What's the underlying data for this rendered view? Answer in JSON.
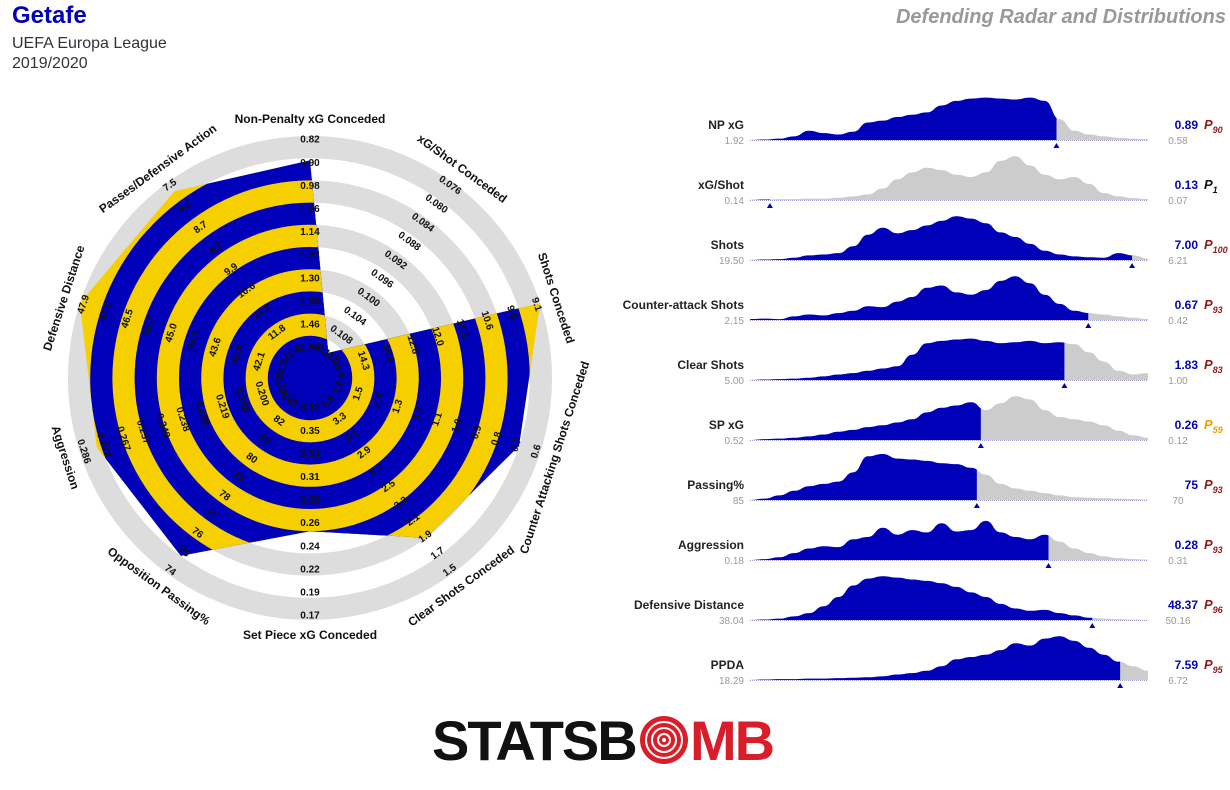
{
  "header": {
    "team": "Getafe",
    "competition": "UEFA Europa League",
    "season": "2019/2020",
    "title": "Defending Radar and Distributions"
  },
  "logo": {
    "text_left": "STATSB",
    "text_right": "MB",
    "left_color": "#111111",
    "right_color": "#d91e2a"
  },
  "colors": {
    "blue": "#0000b8",
    "yellow": "#f5cf00",
    "grey": "#cccccc",
    "ring_grey": "#dddddd",
    "pct_red": "#8b1a1a",
    "pct_orange": "#e8a000"
  },
  "chart_data": [
    {
      "type": "radar",
      "axes": [
        {
          "label": "Non-Penalty xG Conceded",
          "ticks": [
            "1.54",
            "1.46",
            "1.38",
            "1.30",
            "1.22",
            "1.14",
            "1.06",
            "0.98",
            "0.90",
            "0.82"
          ],
          "value_frac": 0.89
        },
        {
          "label": "xG/Shot Conceded",
          "ticks": [
            "0.112",
            "0.108",
            "0.104",
            "0.100",
            "0.096",
            "0.092",
            "0.088",
            "0.084",
            "0.080",
            "0.076"
          ],
          "value_frac": 0.05
        },
        {
          "label": "Shots Conceded",
          "ticks": [
            "15.0",
            "14.3",
            "13.5",
            "12.8",
            "12.0",
            "11.3",
            "10.6",
            "9.8",
            "9.1"
          ],
          "value_frac": 1.0
        },
        {
          "label": "Counter Attacking Shots Conceded",
          "ticks": [
            "1.6",
            "1.5",
            "1.4",
            "1.3",
            "1.2",
            "1.1",
            "1.0",
            "0.9",
            "0.8",
            "0.7",
            "0.6"
          ],
          "value_frac": 0.9
        },
        {
          "label": "Clear Shots Conceded",
          "ticks": [
            "3.5",
            "3.3",
            "3.1",
            "2.9",
            "2.7",
            "2.5",
            "2.3",
            "2.1",
            "1.9",
            "1.7",
            "1.5"
          ],
          "value_frac": 0.8
        },
        {
          "label": "Set Piece xG Conceded",
          "ticks": [
            "0.37",
            "0.35",
            "0.33",
            "0.31",
            "0.28",
            "0.26",
            "0.24",
            "0.22",
            "0.19",
            "0.17"
          ],
          "value_frac": 0.6
        },
        {
          "label": "Opposition Passing%",
          "ticks": [
            "83",
            "82",
            "81",
            "80",
            "79",
            "78",
            "77",
            "76",
            "75",
            "74"
          ],
          "value_frac": 0.9
        },
        {
          "label": "Aggression",
          "ticks": [
            "0.190",
            "0.200",
            "0.209",
            "0.219",
            "0.228",
            "0.238",
            "0.248",
            "0.257",
            "0.267",
            "0.277",
            "0.286"
          ],
          "value_frac": 0.92
        },
        {
          "label": "Defensive Distance",
          "ticks": [
            "41.1",
            "42.1",
            "42.8",
            "43.6",
            "44.3",
            "45.0",
            "45.7",
            "46.5",
            "47.2",
            "47.9"
          ],
          "value_frac": 1.0
        },
        {
          "label": "Passes/Defensive Action",
          "ticks": [
            "12.4",
            "11.8",
            "11.2",
            "10.6",
            "9.9",
            "9.3",
            "8.7",
            "8.1",
            "7.5"
          ],
          "value_frac": 0.95
        }
      ]
    },
    {
      "type": "area",
      "rows": [
        {
          "name": "NP xG",
          "min": "1.92",
          "max": "0.58",
          "value": "0.89",
          "pct": "90",
          "pct_color": "#8b1a1a",
          "marker_frac": 0.77,
          "density": [
            0,
            0.01,
            0.03,
            0.08,
            0.2,
            0.15,
            0.12,
            0.18,
            0.38,
            0.42,
            0.5,
            0.55,
            0.6,
            0.75,
            0.85,
            0.9,
            0.92,
            0.9,
            0.88,
            0.92,
            0.85,
            0.45,
            0.2,
            0.12,
            0.08,
            0.05,
            0.03,
            0.02
          ]
        },
        {
          "name": "xG/Shot",
          "min": "0.14",
          "max": "0.07",
          "value": "0.13",
          "pct": "1",
          "pct_color": "#111111",
          "marker_frac": 0.05,
          "density": [
            0,
            0.01,
            0.02,
            0.02,
            0.03,
            0.03,
            0.05,
            0.08,
            0.12,
            0.25,
            0.45,
            0.6,
            0.7,
            0.65,
            0.55,
            0.5,
            0.6,
            0.85,
            0.95,
            0.75,
            0.55,
            0.45,
            0.5,
            0.35,
            0.15,
            0.08,
            0.04,
            0.02
          ]
        },
        {
          "name": "Shots",
          "min": "19.50",
          "max": "6.21",
          "value": "7.00",
          "pct": "100",
          "pct_color": "#8b1a1a",
          "marker_frac": 0.96,
          "density": [
            0,
            0.01,
            0.02,
            0.05,
            0.1,
            0.12,
            0.15,
            0.3,
            0.55,
            0.7,
            0.58,
            0.65,
            0.75,
            0.85,
            0.95,
            0.9,
            0.8,
            0.6,
            0.5,
            0.35,
            0.2,
            0.12,
            0.08,
            0.06,
            0.05,
            0.15,
            0.1,
            0.03
          ]
        },
        {
          "name": "Counter-attack Shots",
          "min": "2.15",
          "max": "0.42",
          "value": "0.67",
          "pct": "93",
          "pct_color": "#8b1a1a",
          "marker_frac": 0.85,
          "density": [
            0.02,
            0.03,
            0.02,
            0.08,
            0.12,
            0.1,
            0.15,
            0.2,
            0.3,
            0.28,
            0.4,
            0.5,
            0.7,
            0.75,
            0.6,
            0.55,
            0.65,
            0.85,
            0.95,
            0.8,
            0.55,
            0.35,
            0.2,
            0.15,
            0.12,
            0.08,
            0.05,
            0.02
          ]
        },
        {
          "name": "Clear Shots",
          "min": "5.00",
          "max": "1.00",
          "value": "1.83",
          "pct": "83",
          "pct_color": "#8b1a1a",
          "marker_frac": 0.79,
          "density": [
            0,
            0.01,
            0.02,
            0.03,
            0.05,
            0.08,
            0.12,
            0.15,
            0.2,
            0.25,
            0.3,
            0.55,
            0.8,
            0.85,
            0.88,
            0.9,
            0.85,
            0.8,
            0.82,
            0.85,
            0.8,
            0.82,
            0.78,
            0.6,
            0.4,
            0.2,
            0.12,
            0.15
          ]
        },
        {
          "name": "SP xG",
          "min": "0.52",
          "max": "0.12",
          "value": "0.26",
          "pct": "59",
          "pct_color": "#e8a000",
          "marker_frac": 0.58,
          "density": [
            0,
            0.02,
            0.03,
            0.05,
            0.08,
            0.12,
            0.18,
            0.22,
            0.28,
            0.32,
            0.38,
            0.45,
            0.6,
            0.7,
            0.75,
            0.82,
            0.65,
            0.8,
            0.95,
            0.88,
            0.65,
            0.5,
            0.45,
            0.4,
            0.32,
            0.2,
            0.1,
            0.05
          ]
        },
        {
          "name": "Passing%",
          "min": "85",
          "max": "70",
          "value": "75",
          "pct": "93",
          "pct_color": "#8b1a1a",
          "marker_frac": 0.57,
          "density": [
            0,
            0.03,
            0.1,
            0.2,
            0.3,
            0.35,
            0.4,
            0.6,
            0.95,
            1.0,
            0.9,
            0.88,
            0.85,
            0.8,
            0.78,
            0.7,
            0.55,
            0.35,
            0.25,
            0.2,
            0.15,
            0.1,
            0.06,
            0.05,
            0.04,
            0.03,
            0.02,
            0.01
          ]
        },
        {
          "name": "Aggression",
          "min": "0.18",
          "max": "0.31",
          "value": "0.28",
          "pct": "93",
          "pct_color": "#8b1a1a",
          "marker_frac": 0.75,
          "density": [
            0,
            0.02,
            0.06,
            0.15,
            0.25,
            0.3,
            0.28,
            0.45,
            0.5,
            0.7,
            0.55,
            0.65,
            0.6,
            0.8,
            0.62,
            0.65,
            0.85,
            0.6,
            0.5,
            0.45,
            0.55,
            0.4,
            0.25,
            0.15,
            0.08,
            0.04,
            0.02,
            0.01
          ]
        },
        {
          "name": "Defensive Distance",
          "min": "38.04",
          "max": "50.16",
          "value": "48.37",
          "pct": "96",
          "pct_color": "#8b1a1a",
          "marker_frac": 0.86,
          "density": [
            0,
            0.01,
            0.03,
            0.08,
            0.15,
            0.3,
            0.5,
            0.75,
            0.9,
            0.95,
            0.92,
            0.88,
            0.85,
            0.8,
            0.72,
            0.6,
            0.5,
            0.35,
            0.25,
            0.2,
            0.22,
            0.15,
            0.1,
            0.05,
            0.03,
            0.02,
            0.01,
            0
          ]
        },
        {
          "name": "PPDA",
          "min": "18.29",
          "max": "6.72",
          "value": "7.59",
          "pct": "95",
          "pct_color": "#8b1a1a",
          "marker_frac": 0.93,
          "density": [
            0,
            0.01,
            0.02,
            0.02,
            0.03,
            0.03,
            0.04,
            0.05,
            0.06,
            0.08,
            0.12,
            0.15,
            0.2,
            0.3,
            0.45,
            0.5,
            0.55,
            0.65,
            0.8,
            0.75,
            0.9,
            0.95,
            0.85,
            0.7,
            0.55,
            0.4,
            0.3,
            0.2
          ]
        }
      ]
    }
  ]
}
